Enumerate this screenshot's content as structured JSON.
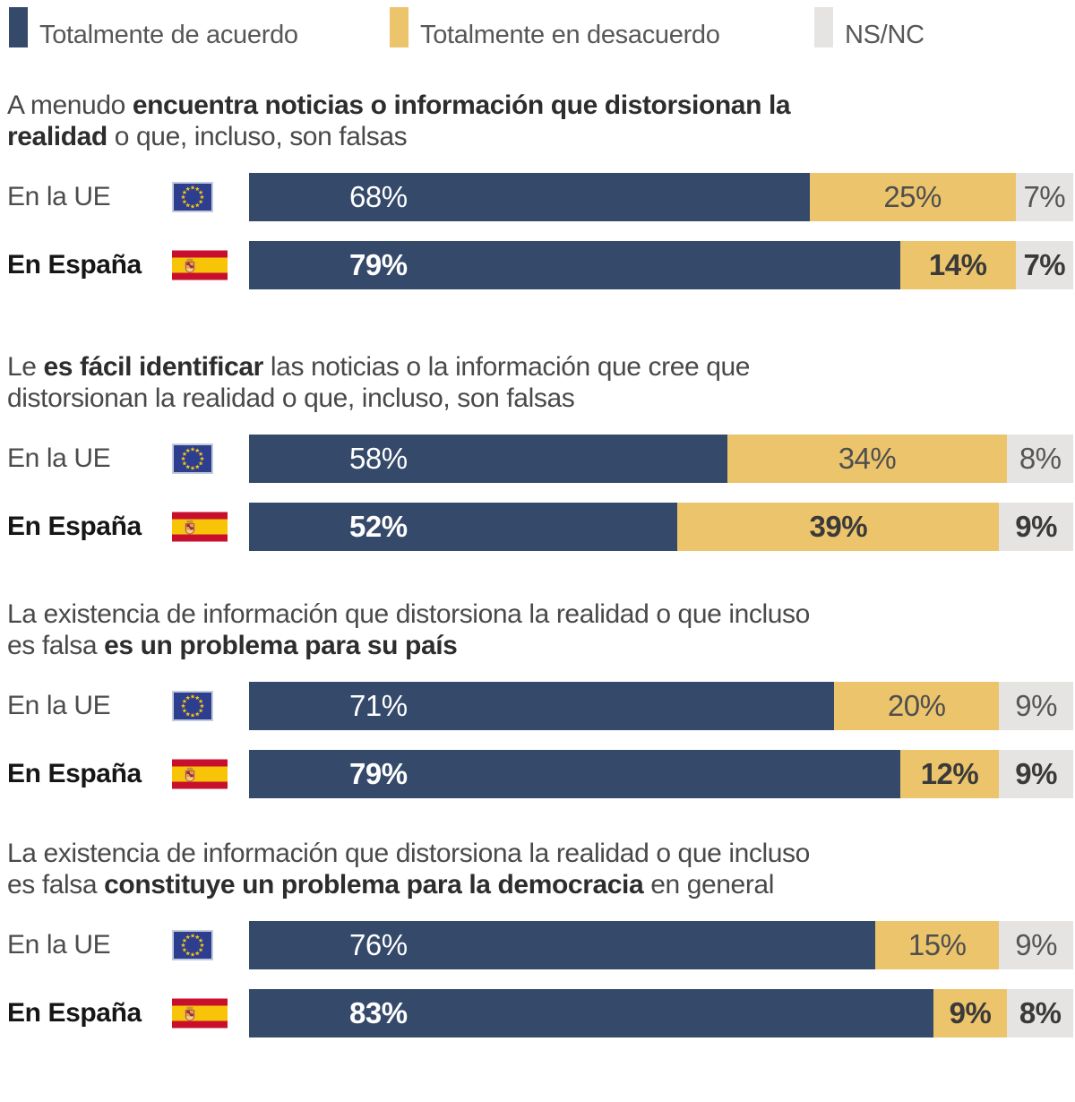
{
  "legend": {
    "items": [
      {
        "label": "Totalmente de acuerdo",
        "color": "#35496b"
      },
      {
        "label": "Totalmente en desacuerdo",
        "color": "#ecc46c"
      },
      {
        "label": "NS/NC",
        "color": "#e5e4e2"
      }
    ]
  },
  "chart_data": {
    "type": "bar",
    "orientation": "horizontal",
    "stacked": true,
    "unit": "percent",
    "x_range": [
      0,
      100
    ],
    "grid": false,
    "legend_position": "top",
    "series": [
      "Totalmente de acuerdo",
      "Totalmente en desacuerdo",
      "NS/NC"
    ],
    "colors": {
      "totalmente_de_acuerdo": "#35496b",
      "totalmente_en_desacuerdo": "#ecc46c",
      "ns_nc": "#e5e4e2"
    },
    "questions": [
      {
        "title_lines": [
          [
            {
              "text": "A menudo ",
              "bold": false
            },
            {
              "text": "encuentra noticias o información que distorsionan la",
              "bold": true
            }
          ],
          [
            {
              "text": "realidad",
              "bold": true
            },
            {
              "text": " o que, incluso, son falsas",
              "bold": false
            }
          ]
        ],
        "rows": [
          {
            "label": "En la UE",
            "flag": "eu",
            "emphasis": false,
            "values": [
              68,
              25,
              7
            ],
            "value_labels": [
              "68%",
              "25%",
              "7%"
            ]
          },
          {
            "label": "En España",
            "flag": "es",
            "emphasis": true,
            "values": [
              79,
              14,
              7
            ],
            "value_labels": [
              "79%",
              "14%",
              "7%"
            ]
          }
        ]
      },
      {
        "title_lines": [
          [
            {
              "text": "Le ",
              "bold": false
            },
            {
              "text": "es fácil identificar",
              "bold": true
            },
            {
              "text": " las noticias o la información que cree que",
              "bold": false
            }
          ],
          [
            {
              "text": "distorsionan la realidad o que, incluso, son falsas",
              "bold": false
            }
          ]
        ],
        "rows": [
          {
            "label": "En la UE",
            "flag": "eu",
            "emphasis": false,
            "values": [
              58,
              34,
              8
            ],
            "value_labels": [
              "58%",
              "34%",
              "8%"
            ]
          },
          {
            "label": "En España",
            "flag": "es",
            "emphasis": true,
            "values": [
              52,
              39,
              9
            ],
            "value_labels": [
              "52%",
              "39%",
              "9%"
            ]
          }
        ]
      },
      {
        "title_lines": [
          [
            {
              "text": "La existencia de información que distorsiona la realidad o que incluso",
              "bold": false
            }
          ],
          [
            {
              "text": "es falsa ",
              "bold": false
            },
            {
              "text": "es un problema para su país",
              "bold": true
            }
          ]
        ],
        "rows": [
          {
            "label": "En la UE",
            "flag": "eu",
            "emphasis": false,
            "values": [
              71,
              20,
              9
            ],
            "value_labels": [
              "71%",
              "20%",
              "9%"
            ]
          },
          {
            "label": "En España",
            "flag": "es",
            "emphasis": true,
            "values": [
              79,
              12,
              9
            ],
            "value_labels": [
              "79%",
              "12%",
              "9%"
            ]
          }
        ]
      },
      {
        "title_lines": [
          [
            {
              "text": "La existencia de información que distorsiona la realidad o que incluso",
              "bold": false
            }
          ],
          [
            {
              "text": "es falsa ",
              "bold": false
            },
            {
              "text": "constituye un problema para la democracia",
              "bold": true
            },
            {
              "text": " en general",
              "bold": false
            }
          ]
        ],
        "rows": [
          {
            "label": "En la UE",
            "flag": "eu",
            "emphasis": false,
            "values": [
              76,
              15,
              9
            ],
            "value_labels": [
              "76%",
              "15%",
              "9%"
            ]
          },
          {
            "label": "En España",
            "flag": "es",
            "emphasis": true,
            "values": [
              83,
              9,
              8
            ],
            "value_labels": [
              "83%",
              "9%",
              "8%"
            ]
          }
        ]
      }
    ]
  }
}
